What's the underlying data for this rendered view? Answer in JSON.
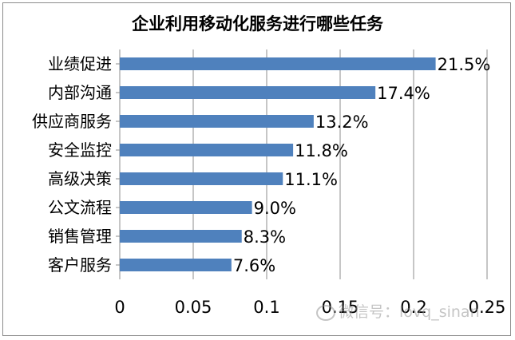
{
  "chart_data": {
    "type": "bar",
    "orientation": "horizontal",
    "title": "企业利用移动化服务进行哪些任务",
    "categories": [
      "业绩促进",
      "内部沟通",
      "供应商服务",
      "安全监控",
      "高级决策",
      "公文流程",
      "销售管理",
      "客户服务"
    ],
    "values": [
      0.215,
      0.174,
      0.132,
      0.118,
      0.111,
      0.09,
      0.083,
      0.076
    ],
    "data_labels": [
      "21.5%",
      "17.4%",
      "13.2%",
      "11.8%",
      "11.1%",
      "9.0%",
      "8.3%",
      "7.6%"
    ],
    "xlim": [
      0,
      0.25
    ],
    "xticks": [
      "0",
      "0.05",
      "0.1",
      "0.15",
      "0.2",
      "0.25"
    ],
    "grid": "vertical major gridlines",
    "bar_color": "#4f81bd",
    "gridline_color": "#8c8c8c"
  },
  "watermark": {
    "icon": "wechat-icon",
    "text": "微信号：lovq_sinan"
  }
}
